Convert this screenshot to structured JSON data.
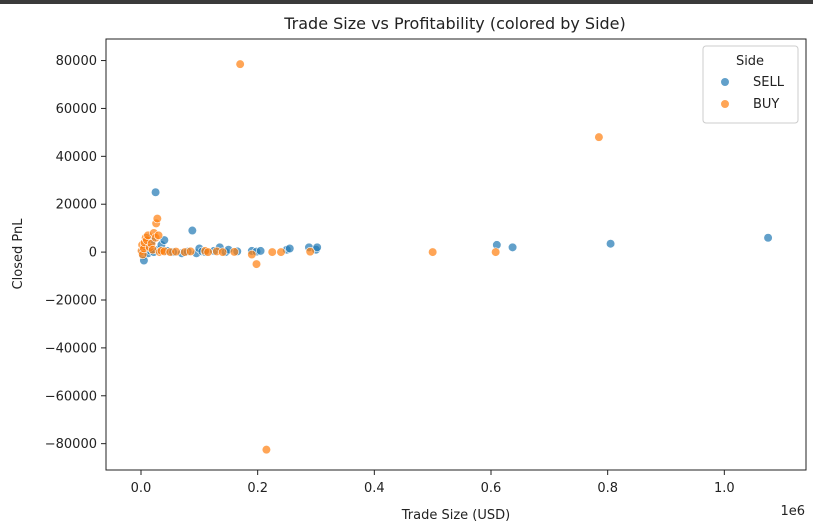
{
  "chart_data": {
    "type": "scatter",
    "title": "Trade Size vs Profitability (colored by Side)",
    "xlabel": "Trade Size (USD)",
    "ylabel": "Closed PnL",
    "x_offset_text": "1e6",
    "xlim": [
      -60000,
      1140000
    ],
    "ylim": [
      -91000,
      89000
    ],
    "x_ticks": [
      0,
      200000,
      400000,
      600000,
      800000,
      1000000
    ],
    "x_tick_labels": [
      "0.0",
      "0.2",
      "0.4",
      "0.6",
      "0.8",
      "1.0"
    ],
    "y_ticks": [
      -80000,
      -60000,
      -40000,
      -20000,
      0,
      20000,
      40000,
      60000,
      80000
    ],
    "y_tick_labels": [
      "−80000",
      "−60000",
      "−40000",
      "−20000",
      "0",
      "20000",
      "40000",
      "60000",
      "80000"
    ],
    "grid": false,
    "legend": {
      "title": "Side",
      "placement": "top-right"
    },
    "series": [
      {
        "name": "SELL",
        "color": "#1f77b4",
        "points": [
          [
            2000,
            0
          ],
          [
            3000,
            500
          ],
          [
            4000,
            -1500
          ],
          [
            5000,
            1000
          ],
          [
            5000,
            -3500
          ],
          [
            7000,
            2000
          ],
          [
            8000,
            0
          ],
          [
            10000,
            3000
          ],
          [
            12000,
            -500
          ],
          [
            13000,
            6000
          ],
          [
            15000,
            1500
          ],
          [
            17000,
            500
          ],
          [
            19000,
            4500
          ],
          [
            22000,
            0
          ],
          [
            25000,
            25000
          ],
          [
            30000,
            1000
          ],
          [
            35000,
            3000
          ],
          [
            40000,
            5000
          ],
          [
            45000,
            500
          ],
          [
            55000,
            0
          ],
          [
            70000,
            -500
          ],
          [
            80000,
            200
          ],
          [
            88000,
            9000
          ],
          [
            95000,
            -500
          ],
          [
            100000,
            1500
          ],
          [
            105000,
            300
          ],
          [
            110000,
            0
          ],
          [
            125000,
            500
          ],
          [
            135000,
            2000
          ],
          [
            145000,
            0
          ],
          [
            150000,
            1000
          ],
          [
            165000,
            300
          ],
          [
            190000,
            500
          ],
          [
            198000,
            200
          ],
          [
            205000,
            500
          ],
          [
            250000,
            1000
          ],
          [
            255000,
            1500
          ],
          [
            288000,
            2000
          ],
          [
            300000,
            1000
          ],
          [
            302000,
            2000
          ],
          [
            610000,
            3000
          ],
          [
            637000,
            2000
          ],
          [
            805000,
            3500
          ],
          [
            1075000,
            6000
          ]
        ]
      },
      {
        "name": "BUY",
        "color": "#ff7f0e",
        "points": [
          [
            1000,
            500
          ],
          [
            2000,
            3000
          ],
          [
            3000,
            -1000
          ],
          [
            5000,
            1500
          ],
          [
            6000,
            4000
          ],
          [
            8000,
            6000
          ],
          [
            10000,
            5000
          ],
          [
            12000,
            7000
          ],
          [
            15000,
            2000
          ],
          [
            18000,
            3500
          ],
          [
            20000,
            1000
          ],
          [
            22000,
            8000
          ],
          [
            25000,
            6000
          ],
          [
            26000,
            12000
          ],
          [
            28000,
            14000
          ],
          [
            30000,
            7000
          ],
          [
            32000,
            0
          ],
          [
            35000,
            500
          ],
          [
            40000,
            300
          ],
          [
            50000,
            0
          ],
          [
            60000,
            200
          ],
          [
            75000,
            0
          ],
          [
            85000,
            300
          ],
          [
            110000,
            500
          ],
          [
            115000,
            0
          ],
          [
            130000,
            300
          ],
          [
            140000,
            0
          ],
          [
            160000,
            100
          ],
          [
            170000,
            78500
          ],
          [
            190000,
            -1000
          ],
          [
            198000,
            -5000
          ],
          [
            215000,
            -82500
          ],
          [
            225000,
            0
          ],
          [
            240000,
            0
          ],
          [
            290000,
            200
          ],
          [
            500000,
            0
          ],
          [
            608000,
            0
          ],
          [
            785000,
            48000
          ]
        ]
      }
    ]
  }
}
